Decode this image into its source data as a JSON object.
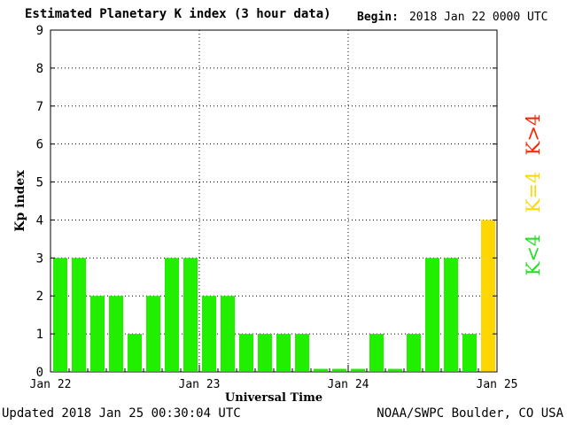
{
  "header": {
    "title": "Estimated Planetary K index (3 hour data)",
    "begin_label": "Begin:",
    "begin_value": "2018 Jan 22 0000 UTC"
  },
  "footer": {
    "updated": "Updated 2018 Jan 25 00:30:04 UTC",
    "source": "NOAA/SWPC Boulder, CO USA"
  },
  "legend": [
    {
      "label": "K>4",
      "color": "#ff2200"
    },
    {
      "label": "K=4",
      "color": "#ffd700"
    },
    {
      "label": "K<4",
      "color": "#22dd22"
    }
  ],
  "chart_data": {
    "type": "bar",
    "title": "Estimated Planetary K index (3 hour data)",
    "xlabel": "Universal Time",
    "ylabel": "Kp index",
    "ylim": [
      0,
      9
    ],
    "yticks": [
      0,
      1,
      2,
      3,
      4,
      5,
      6,
      7,
      8,
      9
    ],
    "xtick_labels": [
      "Jan 22",
      "Jan 23",
      "Jan 24",
      "Jan 25"
    ],
    "grid": true,
    "bars_per_day": 8,
    "values": [
      3,
      3,
      2,
      2,
      1,
      2,
      3,
      3,
      2,
      2,
      1,
      1,
      1,
      1,
      0,
      0,
      0,
      1,
      0,
      1,
      3,
      3,
      1,
      4
    ],
    "colors": {
      "below4": "#22ee00",
      "equal4": "#ffd700",
      "above4": "#ff2200"
    }
  }
}
